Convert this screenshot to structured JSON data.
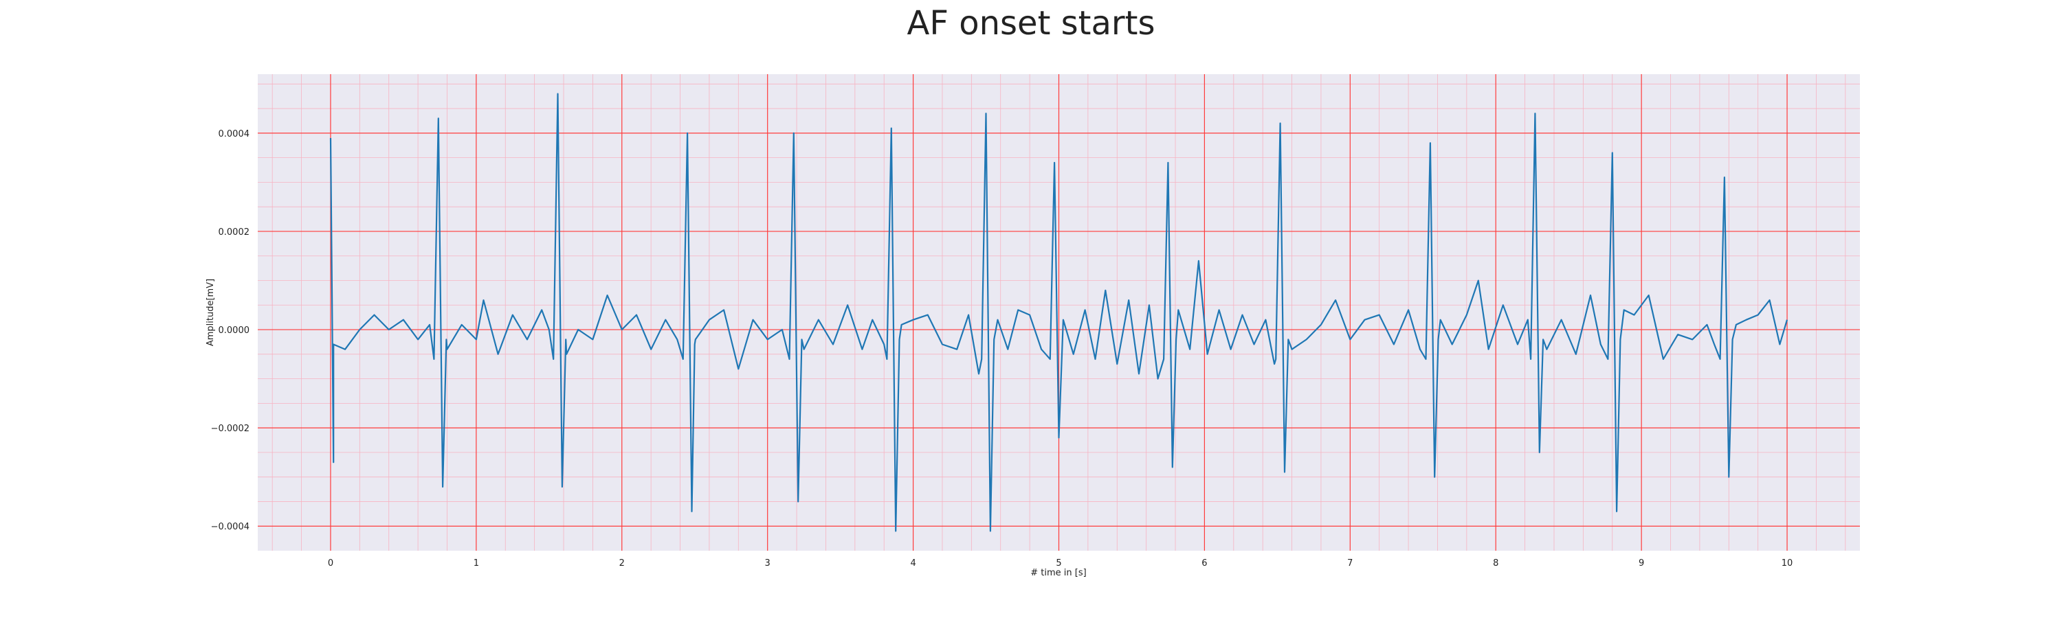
{
  "chart_data": {
    "type": "line",
    "title": "AF onset starts",
    "xlabel": "# time in [s]",
    "ylabel": "Amplitude[mV]",
    "xlim": [
      -0.5,
      10.5
    ],
    "ylim": [
      -0.00045,
      0.00052
    ],
    "x_ticks": [
      0,
      1,
      2,
      3,
      4,
      5,
      6,
      7,
      8,
      9,
      10
    ],
    "x_tick_labels": [
      "0",
      "1",
      "2",
      "3",
      "4",
      "5",
      "6",
      "7",
      "8",
      "9",
      "10"
    ],
    "y_ticks": [
      -0.0004,
      -0.0002,
      0.0,
      0.0002,
      0.0004
    ],
    "y_tick_labels": [
      "−0.0004",
      "−0.0002",
      "0.0000",
      "0.0002",
      "0.0004"
    ],
    "grid": true,
    "minor_grid": true,
    "colors": {
      "plot_background": "#eae9f2",
      "major_grid": "#ff3b3b",
      "minor_grid": "#f7b3c2",
      "line": "#1f77b4"
    },
    "series": [
      {
        "beats": [
          {
            "t": 0.0,
            "r": 0.00039,
            "s": -0.00027
          },
          {
            "t": 0.74,
            "r": 0.00043,
            "s": -0.00032
          },
          {
            "t": 1.56,
            "r": 0.00048,
            "s": -0.00032
          },
          {
            "t": 2.45,
            "r": 0.0004,
            "s": -0.00037
          },
          {
            "t": 3.18,
            "r": 0.0004,
            "s": -0.00035
          },
          {
            "t": 3.85,
            "r": 0.00041,
            "s": -0.00041
          },
          {
            "t": 4.5,
            "r": 0.00044,
            "s": -0.00041
          },
          {
            "t": 4.97,
            "r": 0.00034,
            "s": -0.00022
          },
          {
            "t": 5.75,
            "r": 0.00034,
            "s": -0.00028
          },
          {
            "t": 6.52,
            "r": 0.00042,
            "s": -0.00029
          },
          {
            "t": 7.55,
            "r": 0.00038,
            "s": -0.0003
          },
          {
            "t": 8.27,
            "r": 0.00044,
            "s": -0.00025
          },
          {
            "t": 8.8,
            "r": 0.00036,
            "s": -0.00037
          },
          {
            "t": 9.57,
            "r": 0.00031,
            "s": -0.0003
          }
        ],
        "baseline_points": [
          [
            0.02,
            -3e-05
          ],
          [
            0.1,
            -4e-05
          ],
          [
            0.2,
            0.0
          ],
          [
            0.3,
            3e-05
          ],
          [
            0.4,
            0.0
          ],
          [
            0.5,
            2e-05
          ],
          [
            0.6,
            -2e-05
          ],
          [
            0.68,
            1e-05
          ],
          [
            0.8,
            -4e-05
          ],
          [
            0.9,
            1e-05
          ],
          [
            1.0,
            -2e-05
          ],
          [
            1.05,
            6e-05
          ],
          [
            1.15,
            -5e-05
          ],
          [
            1.25,
            3e-05
          ],
          [
            1.35,
            -2e-05
          ],
          [
            1.45,
            4e-05
          ],
          [
            1.5,
            0.0
          ],
          [
            1.62,
            -5e-05
          ],
          [
            1.7,
            0.0
          ],
          [
            1.8,
            -2e-05
          ],
          [
            1.9,
            7e-05
          ],
          [
            2.0,
            0.0
          ],
          [
            2.1,
            3e-05
          ],
          [
            2.2,
            -4e-05
          ],
          [
            2.3,
            2e-05
          ],
          [
            2.38,
            -2e-05
          ],
          [
            2.5,
            -3e-05
          ],
          [
            2.6,
            2e-05
          ],
          [
            2.7,
            4e-05
          ],
          [
            2.8,
            -8e-05
          ],
          [
            2.9,
            2e-05
          ],
          [
            3.0,
            -2e-05
          ],
          [
            3.1,
            0.0
          ],
          [
            3.25,
            -4e-05
          ],
          [
            3.35,
            2e-05
          ],
          [
            3.45,
            -3e-05
          ],
          [
            3.55,
            5e-05
          ],
          [
            3.65,
            -4e-05
          ],
          [
            3.72,
            2e-05
          ],
          [
            3.8,
            -3e-05
          ],
          [
            3.92,
            1e-05
          ],
          [
            4.0,
            2e-05
          ],
          [
            4.1,
            3e-05
          ],
          [
            4.2,
            -3e-05
          ],
          [
            4.3,
            -4e-05
          ],
          [
            4.38,
            3e-05
          ],
          [
            4.45,
            -9e-05
          ],
          [
            4.58,
            2e-05
          ],
          [
            4.65,
            -4e-05
          ],
          [
            4.72,
            4e-05
          ],
          [
            4.8,
            3e-05
          ],
          [
            4.88,
            -4e-05
          ],
          [
            5.03,
            2e-05
          ],
          [
            5.1,
            -5e-05
          ],
          [
            5.18,
            4e-05
          ],
          [
            5.25,
            -6e-05
          ],
          [
            5.32,
            8e-05
          ],
          [
            5.4,
            -7e-05
          ],
          [
            5.48,
            6e-05
          ],
          [
            5.55,
            -9e-05
          ],
          [
            5.62,
            5e-05
          ],
          [
            5.68,
            -0.0001
          ],
          [
            5.82,
            4e-05
          ],
          [
            5.9,
            -4e-05
          ],
          [
            5.96,
            0.00014
          ],
          [
            6.02,
            -5e-05
          ],
          [
            6.1,
            4e-05
          ],
          [
            6.18,
            -4e-05
          ],
          [
            6.26,
            3e-05
          ],
          [
            6.34,
            -3e-05
          ],
          [
            6.42,
            2e-05
          ],
          [
            6.48,
            -7e-05
          ],
          [
            6.6,
            -4e-05
          ],
          [
            6.7,
            -2e-05
          ],
          [
            6.8,
            1e-05
          ],
          [
            6.9,
            6e-05
          ],
          [
            7.0,
            -2e-05
          ],
          [
            7.1,
            2e-05
          ],
          [
            7.2,
            3e-05
          ],
          [
            7.3,
            -3e-05
          ],
          [
            7.4,
            4e-05
          ],
          [
            7.48,
            -4e-05
          ],
          [
            7.62,
            2e-05
          ],
          [
            7.7,
            -3e-05
          ],
          [
            7.8,
            3e-05
          ],
          [
            7.88,
            0.0001
          ],
          [
            7.95,
            -4e-05
          ],
          [
            8.05,
            5e-05
          ],
          [
            8.15,
            -3e-05
          ],
          [
            8.22,
            2e-05
          ],
          [
            8.35,
            -4e-05
          ],
          [
            8.45,
            2e-05
          ],
          [
            8.55,
            -5e-05
          ],
          [
            8.65,
            7e-05
          ],
          [
            8.72,
            -3e-05
          ],
          [
            8.88,
            4e-05
          ],
          [
            8.95,
            3e-05
          ],
          [
            9.05,
            7e-05
          ],
          [
            9.15,
            -6e-05
          ],
          [
            9.25,
            -1e-05
          ],
          [
            9.35,
            -2e-05
          ],
          [
            9.45,
            1e-05
          ],
          [
            9.5,
            -3e-05
          ],
          [
            9.65,
            1e-05
          ],
          [
            9.72,
            2e-05
          ],
          [
            9.8,
            3e-05
          ],
          [
            9.88,
            6e-05
          ],
          [
            9.95,
            -3e-05
          ],
          [
            10.0,
            2e-05
          ]
        ]
      }
    ]
  }
}
